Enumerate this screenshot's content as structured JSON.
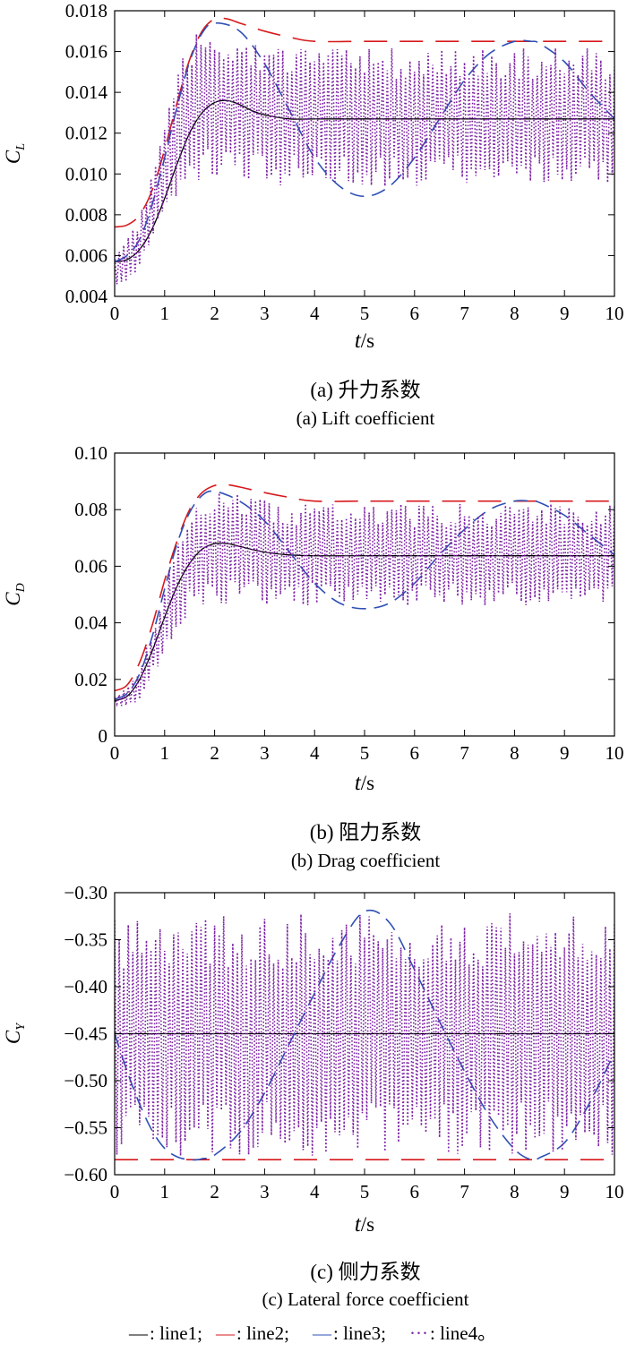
{
  "chart_data": [
    {
      "type": "line",
      "panel_label": "(a)",
      "caption_cn": "(a) 升力系数",
      "caption_en": "(a) Lift coefficient",
      "ylabel": {
        "symbol": "C",
        "subscript": "L"
      },
      "xlabel": {
        "symbol": "t",
        "unit": "/s"
      },
      "xlim": [
        0,
        10
      ],
      "ylim": [
        0.004,
        0.018
      ],
      "xticks": [
        0,
        1,
        2,
        3,
        4,
        5,
        6,
        7,
        8,
        9,
        10
      ],
      "xtick_labels": [
        "0",
        "1",
        "2",
        "3",
        "4",
        "5",
        "6",
        "7",
        "8",
        "9",
        "10"
      ],
      "yticks": [
        0.004,
        0.006,
        0.008,
        0.01,
        0.012,
        0.014,
        0.016,
        0.018
      ],
      "ytick_labels": [
        "0.004",
        "0.006",
        "0.008",
        "0.010",
        "0.012",
        "0.014",
        "0.016",
        "0.018"
      ],
      "series": [
        {
          "name": "line1",
          "color": "#000000",
          "dash": "solid",
          "x": [
            0,
            0.25,
            0.5,
            0.75,
            1.0,
            1.25,
            1.5,
            1.75,
            2.0,
            2.25,
            2.5,
            2.75,
            3.0,
            3.5,
            4.0,
            5.0,
            6.0,
            7.0,
            8.0,
            9.0,
            10.0
          ],
          "y": [
            0.0057,
            0.0058,
            0.0063,
            0.0073,
            0.0088,
            0.0105,
            0.012,
            0.013,
            0.0135,
            0.0136,
            0.0134,
            0.0131,
            0.0129,
            0.0127,
            0.0127,
            0.0127,
            0.0127,
            0.0127,
            0.0127,
            0.0127,
            0.0127
          ]
        },
        {
          "name": "line2",
          "color": "#d7191c",
          "dash": "long-dash",
          "x": [
            0,
            0.25,
            0.5,
            0.75,
            1.0,
            1.25,
            1.5,
            1.75,
            2.0,
            2.25,
            2.5,
            2.75,
            3.0,
            3.5,
            4.0,
            5.0,
            6.0,
            7.0,
            8.0,
            9.0,
            10.0
          ],
          "y": [
            0.0074,
            0.0075,
            0.008,
            0.0092,
            0.0112,
            0.0135,
            0.0156,
            0.017,
            0.0176,
            0.0176,
            0.0174,
            0.0172,
            0.017,
            0.0167,
            0.0165,
            0.0165,
            0.0165,
            0.0165,
            0.0165,
            0.0165,
            0.0165
          ]
        },
        {
          "name": "line3",
          "color": "#2e4fb5",
          "dash": "dash",
          "x": [
            0,
            0.25,
            0.5,
            0.75,
            1.0,
            1.25,
            1.5,
            1.75,
            2.0,
            2.5,
            3.0,
            3.5,
            4.0,
            4.5,
            5.0,
            5.5,
            6.0,
            6.5,
            7.0,
            7.5,
            8.0,
            8.33,
            8.5,
            9.0,
            9.5,
            10.0
          ],
          "y": [
            0.0057,
            0.006,
            0.0068,
            0.0085,
            0.0108,
            0.0133,
            0.0155,
            0.0169,
            0.0174,
            0.017,
            0.0154,
            0.0131,
            0.0108,
            0.0094,
            0.0089,
            0.0094,
            0.0108,
            0.0127,
            0.0146,
            0.0159,
            0.0165,
            0.0165,
            0.0164,
            0.0155,
            0.014,
            0.0127
          ]
        },
        {
          "name": "line4",
          "color": "#7b1fa2",
          "dash": "dot",
          "oscillating": true,
          "x": [
            0,
            0.25,
            0.5,
            0.75,
            1.0,
            1.25,
            1.5,
            1.75,
            2.0,
            2.5,
            3.0,
            3.5,
            4.0,
            5.0,
            6.0,
            7.0,
            8.0,
            9.0,
            10.0
          ],
          "upper": [
            0.0064,
            0.007,
            0.008,
            0.01,
            0.0125,
            0.015,
            0.0165,
            0.0172,
            0.0173,
            0.0168,
            0.0165,
            0.0163,
            0.0162,
            0.0162,
            0.0162,
            0.0162,
            0.0162,
            0.0162,
            0.0162
          ],
          "lower": [
            0.0046,
            0.0044,
            0.005,
            0.0065,
            0.008,
            0.009,
            0.0095,
            0.0096,
            0.0096,
            0.0095,
            0.0094,
            0.0094,
            0.0094,
            0.0094,
            0.0094,
            0.0094,
            0.0094,
            0.0094,
            0.0094
          ]
        }
      ]
    },
    {
      "type": "line",
      "panel_label": "(b)",
      "caption_cn": "(b) 阻力系数",
      "caption_en": "(b) Drag coefficient",
      "ylabel": {
        "symbol": "C",
        "subscript": "D"
      },
      "xlabel": {
        "symbol": "t",
        "unit": "/s"
      },
      "xlim": [
        0,
        10
      ],
      "ylim": [
        0,
        0.1
      ],
      "xticks": [
        0,
        1,
        2,
        3,
        4,
        5,
        6,
        7,
        8,
        9,
        10
      ],
      "xtick_labels": [
        "0",
        "1",
        "2",
        "3",
        "4",
        "5",
        "6",
        "7",
        "8",
        "9",
        "10"
      ],
      "yticks": [
        0,
        0.02,
        0.04,
        0.06,
        0.08,
        0.1
      ],
      "ytick_labels": [
        "0",
        "0.02",
        "0.04",
        "0.06",
        "0.08",
        "0.10"
      ],
      "series": [
        {
          "name": "line1",
          "color": "#000000",
          "dash": "solid",
          "x": [
            0,
            0.25,
            0.5,
            0.75,
            1.0,
            1.25,
            1.5,
            1.75,
            2.0,
            2.25,
            2.5,
            3.0,
            3.5,
            4.0,
            5.0,
            6.0,
            7.0,
            8.0,
            9.0,
            10.0
          ],
          "y": [
            0.0125,
            0.014,
            0.02,
            0.03,
            0.042,
            0.053,
            0.061,
            0.066,
            0.068,
            0.068,
            0.067,
            0.065,
            0.064,
            0.0637,
            0.0637,
            0.0637,
            0.0637,
            0.0637,
            0.0637,
            0.0637
          ]
        },
        {
          "name": "line2",
          "color": "#d7191c",
          "dash": "long-dash",
          "x": [
            0,
            0.25,
            0.5,
            0.75,
            1.0,
            1.25,
            1.5,
            1.75,
            2.0,
            2.25,
            2.5,
            3.0,
            3.5,
            4.0,
            5.0,
            6.0,
            7.0,
            8.0,
            9.0,
            10.0
          ],
          "y": [
            0.016,
            0.018,
            0.026,
            0.039,
            0.055,
            0.069,
            0.08,
            0.086,
            0.0885,
            0.0888,
            0.088,
            0.086,
            0.0843,
            0.083,
            0.083,
            0.083,
            0.083,
            0.083,
            0.083,
            0.083
          ]
        },
        {
          "name": "line3",
          "color": "#2e4fb5",
          "dash": "dash",
          "x": [
            0,
            0.25,
            0.5,
            0.75,
            1.0,
            1.25,
            1.5,
            1.75,
            2.0,
            2.5,
            3.0,
            3.5,
            4.0,
            4.5,
            5.0,
            5.5,
            6.0,
            6.5,
            7.0,
            7.5,
            8.0,
            8.33,
            8.5,
            9.0,
            9.5,
            10.0
          ],
          "y": [
            0.013,
            0.015,
            0.022,
            0.035,
            0.052,
            0.068,
            0.079,
            0.085,
            0.0865,
            0.083,
            0.076,
            0.065,
            0.054,
            0.047,
            0.045,
            0.047,
            0.054,
            0.064,
            0.073,
            0.08,
            0.083,
            0.083,
            0.0825,
            0.078,
            0.071,
            0.064
          ]
        },
        {
          "name": "line4",
          "color": "#7b1fa2",
          "dash": "dot",
          "oscillating": true,
          "x": [
            0,
            0.25,
            0.5,
            0.75,
            1.0,
            1.25,
            1.5,
            1.75,
            2.0,
            2.5,
            3.0,
            3.5,
            4.0,
            5.0,
            6.0,
            7.0,
            8.0,
            9.0,
            10.0
          ],
          "upper": [
            0.014,
            0.017,
            0.024,
            0.038,
            0.055,
            0.07,
            0.08,
            0.085,
            0.087,
            0.086,
            0.084,
            0.083,
            0.082,
            0.082,
            0.082,
            0.082,
            0.082,
            0.082,
            0.082
          ],
          "lower": [
            0.011,
            0.01,
            0.013,
            0.02,
            0.029,
            0.038,
            0.043,
            0.045,
            0.046,
            0.046,
            0.046,
            0.046,
            0.046,
            0.046,
            0.046,
            0.046,
            0.046,
            0.046,
            0.046
          ]
        }
      ]
    },
    {
      "type": "line",
      "panel_label": "(c)",
      "caption_cn": "(c) 侧力系数",
      "caption_en": "(c) Lateral force coefficient",
      "ylabel": {
        "symbol": "C",
        "subscript": "Y"
      },
      "xlabel": {
        "symbol": "t",
        "unit": "/s"
      },
      "xlim": [
        0,
        10
      ],
      "ylim": [
        -0.6,
        -0.3
      ],
      "xticks": [
        0,
        1,
        2,
        3,
        4,
        5,
        6,
        7,
        8,
        9,
        10
      ],
      "xtick_labels": [
        "0",
        "1",
        "2",
        "3",
        "4",
        "5",
        "6",
        "7",
        "8",
        "9",
        "10"
      ],
      "yticks": [
        -0.6,
        -0.55,
        -0.5,
        -0.45,
        -0.4,
        -0.35,
        -0.3
      ],
      "ytick_labels": [
        "−0.60",
        "−0.55",
        "−0.50",
        "−0.45",
        "−0.40",
        "−0.35",
        "−0.30"
      ],
      "series": [
        {
          "name": "line1",
          "color": "#000000",
          "dash": "solid",
          "x": [
            0,
            10
          ],
          "y": [
            -0.45,
            -0.45
          ]
        },
        {
          "name": "line2",
          "color": "#d7191c",
          "dash": "long-dash",
          "x": [
            0,
            10
          ],
          "y": [
            -0.584,
            -0.584
          ]
        },
        {
          "name": "line3",
          "color": "#2e4fb5",
          "dash": "dash",
          "x": [
            0,
            0.25,
            0.5,
            0.75,
            1.0,
            1.25,
            1.5,
            1.67,
            1.75,
            2.0,
            2.5,
            3.0,
            3.5,
            4.0,
            4.5,
            5.0,
            5.5,
            6.0,
            6.5,
            7.0,
            7.5,
            8.0,
            8.33,
            8.5,
            9.0,
            9.5,
            10.0
          ],
          "y": [
            -0.45,
            -0.49,
            -0.525,
            -0.553,
            -0.572,
            -0.581,
            -0.584,
            -0.584,
            -0.583,
            -0.579,
            -0.555,
            -0.513,
            -0.46,
            -0.407,
            -0.356,
            -0.32,
            -0.332,
            -0.382,
            -0.437,
            -0.49,
            -0.538,
            -0.573,
            -0.584,
            -0.582,
            -0.566,
            -0.524,
            -0.47
          ]
        },
        {
          "name": "line4",
          "color": "#7b1fa2",
          "dash": "dot",
          "oscillating": true,
          "x": [
            0,
            10
          ],
          "upper": [
            -0.322,
            -0.322
          ],
          "lower": [
            -0.58,
            -0.58
          ]
        }
      ]
    }
  ],
  "legend": {
    "items": [
      {
        "mark": "—",
        "label": ": line1;",
        "color": "#000000"
      },
      {
        "mark": "—",
        "label": ": line2;",
        "color": "#d7191c"
      },
      {
        "mark": "—",
        "label": ": line3;",
        "color": "#2e4fb5"
      },
      {
        "mark": "···",
        "label": ": line4。",
        "color": "#7b1fa2"
      }
    ]
  }
}
